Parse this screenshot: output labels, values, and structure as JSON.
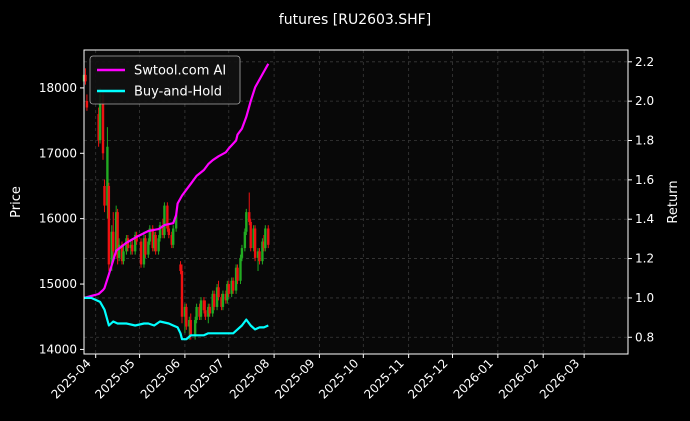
{
  "chart_data": {
    "type": "candlestick+line",
    "title": "futures [RU2603.SHF]",
    "ylabel_left": "Price",
    "ylabel_right": "Return",
    "ylim_left": [
      13930,
      18580
    ],
    "ylim_right": [
      0.715,
      2.26
    ],
    "yticks_left": [
      "14000",
      "15000",
      "16000",
      "17000",
      "18000"
    ],
    "yticks_right": [
      "0.8",
      "1.0",
      "1.2",
      "1.4",
      "1.6",
      "1.8",
      "2.0",
      "2.2"
    ],
    "xlim": [
      "2025-03-24",
      "2026-03-31"
    ],
    "xticks": [
      "2025-04",
      "2025-05",
      "2025-06",
      "2025-07",
      "2025-08",
      "2025-09",
      "2025-10",
      "2025-11",
      "2025-12",
      "2026-01",
      "2026-02",
      "2026-03"
    ],
    "grid": true,
    "legend": {
      "placement": "top-left",
      "entries": [
        "Swtool.com AI",
        "Buy-and-Hold"
      ]
    },
    "colors": {
      "background": "#000000",
      "plot_bg": "#080808",
      "ai": "#ff00ff",
      "bh": "#00ffff",
      "up": "#22aa22",
      "down": "#ee1111",
      "grid": "#3a3a3a"
    },
    "candles": [
      {
        "x": 0,
        "o": 18100,
        "h": 18250,
        "l": 18000,
        "c": 18200
      },
      {
        "x": 1,
        "o": 18200,
        "h": 18300,
        "l": 18050,
        "c": 18100
      },
      {
        "x": 2,
        "o": 17800,
        "h": 17900,
        "l": 17650,
        "c": 17700
      },
      {
        "x": 7,
        "o": 17600,
        "h": 17700,
        "l": 17100,
        "c": 17200
      },
      {
        "x": 8,
        "o": 17200,
        "h": 18000,
        "l": 17150,
        "c": 17900
      },
      {
        "x": 9,
        "o": 17900,
        "h": 17950,
        "l": 16900,
        "c": 17000
      },
      {
        "x": 10,
        "o": 16500,
        "h": 16600,
        "l": 16100,
        "c": 16200
      },
      {
        "x": 11,
        "o": 16200,
        "h": 17400,
        "l": 16000,
        "c": 17100
      },
      {
        "x": 12,
        "o": 16500,
        "h": 16550,
        "l": 15200,
        "c": 15300
      },
      {
        "x": 13,
        "o": 15300,
        "h": 15900,
        "l": 15200,
        "c": 15800
      },
      {
        "x": 14,
        "o": 15800,
        "h": 16100,
        "l": 15400,
        "c": 15500
      },
      {
        "x": 15,
        "o": 15500,
        "h": 16200,
        "l": 15450,
        "c": 16100
      },
      {
        "x": 16,
        "o": 16100,
        "h": 16150,
        "l": 15300,
        "c": 15400
      },
      {
        "x": 17,
        "o": 15400,
        "h": 15700,
        "l": 15350,
        "c": 15600
      },
      {
        "x": 18,
        "o": 15600,
        "h": 15650,
        "l": 15300,
        "c": 15350
      },
      {
        "x": 19,
        "o": 15350,
        "h": 15600,
        "l": 15300,
        "c": 15500
      },
      {
        "x": 20,
        "o": 15500,
        "h": 15750,
        "l": 15450,
        "c": 15700
      },
      {
        "x": 21,
        "o": 15700,
        "h": 15750,
        "l": 15500,
        "c": 15550
      },
      {
        "x": 22,
        "o": 15550,
        "h": 15650,
        "l": 15450,
        "c": 15600
      },
      {
        "x": 23,
        "o": 15600,
        "h": 15700,
        "l": 15450,
        "c": 15500
      },
      {
        "x": 24,
        "o": 15500,
        "h": 15800,
        "l": 15450,
        "c": 15750
      },
      {
        "x": 25,
        "o": 15750,
        "h": 15800,
        "l": 15600,
        "c": 15650
      },
      {
        "x": 27,
        "o": 15650,
        "h": 15700,
        "l": 15250,
        "c": 15300
      },
      {
        "x": 28,
        "o": 15300,
        "h": 15800,
        "l": 15250,
        "c": 15700
      },
      {
        "x": 29,
        "o": 15700,
        "h": 15750,
        "l": 15400,
        "c": 15450
      },
      {
        "x": 30,
        "o": 15450,
        "h": 15700,
        "l": 15400,
        "c": 15650
      },
      {
        "x": 31,
        "o": 15650,
        "h": 15900,
        "l": 15600,
        "c": 15850
      },
      {
        "x": 32,
        "o": 15850,
        "h": 15900,
        "l": 15500,
        "c": 15550
      },
      {
        "x": 33,
        "o": 15550,
        "h": 15800,
        "l": 15500,
        "c": 15750
      },
      {
        "x": 34,
        "o": 15750,
        "h": 15800,
        "l": 15450,
        "c": 15500
      },
      {
        "x": 35,
        "o": 15500,
        "h": 15750,
        "l": 15450,
        "c": 15700
      },
      {
        "x": 36,
        "o": 15700,
        "h": 15950,
        "l": 15650,
        "c": 15900
      },
      {
        "x": 37,
        "o": 15900,
        "h": 16000,
        "l": 15700,
        "c": 15750
      },
      {
        "x": 38,
        "o": 15750,
        "h": 16250,
        "l": 15700,
        "c": 16200
      },
      {
        "x": 39,
        "o": 16200,
        "h": 16250,
        "l": 15800,
        "c": 15850
      },
      {
        "x": 40,
        "o": 15850,
        "h": 15900,
        "l": 15700,
        "c": 15750
      },
      {
        "x": 41,
        "o": 15750,
        "h": 15800,
        "l": 15550,
        "c": 15600
      },
      {
        "x": 42,
        "o": 15600,
        "h": 15900,
        "l": 15550,
        "c": 15850
      },
      {
        "x": 43,
        "o": 15850,
        "h": 16100,
        "l": 15800,
        "c": 16050
      },
      {
        "x": 45,
        "o": 15300,
        "h": 15350,
        "l": 15150,
        "c": 15200
      },
      {
        "x": 46,
        "o": 15200,
        "h": 15300,
        "l": 14400,
        "c": 14500
      },
      {
        "x": 47,
        "o": 14500,
        "h": 14700,
        "l": 14250,
        "c": 14650
      },
      {
        "x": 48,
        "o": 14650,
        "h": 14700,
        "l": 14300,
        "c": 14350
      },
      {
        "x": 49,
        "o": 14350,
        "h": 14500,
        "l": 14150,
        "c": 14450
      },
      {
        "x": 50,
        "o": 14450,
        "h": 14550,
        "l": 14150,
        "c": 14200
      },
      {
        "x": 52,
        "o": 14200,
        "h": 14500,
        "l": 14150,
        "c": 14450
      },
      {
        "x": 53,
        "o": 14450,
        "h": 14700,
        "l": 14400,
        "c": 14650
      },
      {
        "x": 54,
        "o": 14650,
        "h": 14700,
        "l": 14450,
        "c": 14500
      },
      {
        "x": 55,
        "o": 14500,
        "h": 14800,
        "l": 14450,
        "c": 14750
      },
      {
        "x": 56,
        "o": 14750,
        "h": 14800,
        "l": 14550,
        "c": 14600
      },
      {
        "x": 57,
        "o": 14600,
        "h": 14750,
        "l": 14450,
        "c": 14500
      },
      {
        "x": 58,
        "o": 14500,
        "h": 14700,
        "l": 14400,
        "c": 14650
      },
      {
        "x": 59,
        "o": 14650,
        "h": 14700,
        "l": 14500,
        "c": 14550
      },
      {
        "x": 60,
        "o": 14550,
        "h": 14900,
        "l": 14500,
        "c": 14850
      },
      {
        "x": 61,
        "o": 14850,
        "h": 14900,
        "l": 14600,
        "c": 14650
      },
      {
        "x": 62,
        "o": 14650,
        "h": 15000,
        "l": 14600,
        "c": 14950
      },
      {
        "x": 63,
        "o": 14950,
        "h": 15050,
        "l": 14750,
        "c": 14800
      },
      {
        "x": 64,
        "o": 14800,
        "h": 14850,
        "l": 14600,
        "c": 14650
      },
      {
        "x": 65,
        "o": 14650,
        "h": 14900,
        "l": 14600,
        "c": 14850
      },
      {
        "x": 66,
        "o": 14850,
        "h": 14900,
        "l": 14700,
        "c": 14750
      },
      {
        "x": 67,
        "o": 14750,
        "h": 15050,
        "l": 14700,
        "c": 15000
      },
      {
        "x": 68,
        "o": 15000,
        "h": 15050,
        "l": 14800,
        "c": 14850
      },
      {
        "x": 69,
        "o": 14850,
        "h": 15100,
        "l": 14800,
        "c": 15050
      },
      {
        "x": 70,
        "o": 15050,
        "h": 15100,
        "l": 14850,
        "c": 14900
      },
      {
        "x": 71,
        "o": 14900,
        "h": 15300,
        "l": 14850,
        "c": 15250
      },
      {
        "x": 72,
        "o": 15250,
        "h": 15300,
        "l": 15000,
        "c": 15050
      },
      {
        "x": 73,
        "o": 15050,
        "h": 15450,
        "l": 15000,
        "c": 15400
      },
      {
        "x": 74,
        "o": 15400,
        "h": 15600,
        "l": 15350,
        "c": 15550
      },
      {
        "x": 75,
        "o": 15550,
        "h": 15850,
        "l": 15500,
        "c": 15800
      },
      {
        "x": 76,
        "o": 15800,
        "h": 16150,
        "l": 15750,
        "c": 16100
      },
      {
        "x": 77,
        "o": 16100,
        "h": 16400,
        "l": 15900,
        "c": 15950
      },
      {
        "x": 78,
        "o": 15950,
        "h": 16000,
        "l": 15500,
        "c": 15550
      },
      {
        "x": 79,
        "o": 15550,
        "h": 15900,
        "l": 15500,
        "c": 15850
      },
      {
        "x": 80,
        "o": 15850,
        "h": 15900,
        "l": 15350,
        "c": 15400
      },
      {
        "x": 81,
        "o": 15400,
        "h": 15550,
        "l": 15200,
        "c": 15500
      },
      {
        "x": 82,
        "o": 15500,
        "h": 15550,
        "l": 15300,
        "c": 15350
      },
      {
        "x": 83,
        "o": 15350,
        "h": 15700,
        "l": 15300,
        "c": 15650
      },
      {
        "x": 84,
        "o": 15650,
        "h": 15750,
        "l": 15500,
        "c": 15550
      },
      {
        "x": 85,
        "o": 15550,
        "h": 15900,
        "l": 15500,
        "c": 15850
      },
      {
        "x": 86,
        "o": 15850,
        "h": 15900,
        "l": 15550,
        "c": 15600
      }
    ],
    "series": [
      {
        "name": "Swtool.com AI",
        "x": [
          0,
          4,
          7,
          9,
          10,
          12,
          15,
          20,
          25,
          30,
          35,
          38,
          42,
          43,
          44,
          46,
          48,
          50,
          53,
          56,
          58,
          60,
          63,
          66,
          68,
          71,
          72,
          74,
          76,
          78,
          80,
          82,
          84,
          86
        ],
        "values": [
          1.0,
          1.01,
          1.02,
          1.04,
          1.05,
          1.12,
          1.24,
          1.28,
          1.31,
          1.34,
          1.35,
          1.37,
          1.38,
          1.42,
          1.48,
          1.52,
          1.55,
          1.58,
          1.62,
          1.65,
          1.68,
          1.7,
          1.72,
          1.74,
          1.76,
          1.8,
          1.83,
          1.86,
          1.92,
          2.0,
          2.07,
          2.11,
          2.15,
          2.19
        ]
      },
      {
        "name": "Buy-and-Hold",
        "x": [
          0,
          4,
          6,
          8,
          10,
          12,
          14,
          16,
          18,
          20,
          24,
          28,
          30,
          33,
          36,
          40,
          42,
          44,
          45,
          46,
          47,
          48,
          50,
          53,
          56,
          58,
          60,
          63,
          66,
          70,
          72,
          74,
          76,
          78,
          80,
          82,
          84,
          86
        ],
        "values": [
          1.0,
          1.0,
          0.99,
          0.98,
          0.94,
          0.86,
          0.88,
          0.87,
          0.87,
          0.87,
          0.86,
          0.87,
          0.87,
          0.86,
          0.88,
          0.87,
          0.86,
          0.85,
          0.82,
          0.79,
          0.79,
          0.79,
          0.81,
          0.81,
          0.81,
          0.82,
          0.82,
          0.82,
          0.82,
          0.82,
          0.84,
          0.86,
          0.89,
          0.86,
          0.84,
          0.85,
          0.85,
          0.86
        ]
      }
    ]
  }
}
